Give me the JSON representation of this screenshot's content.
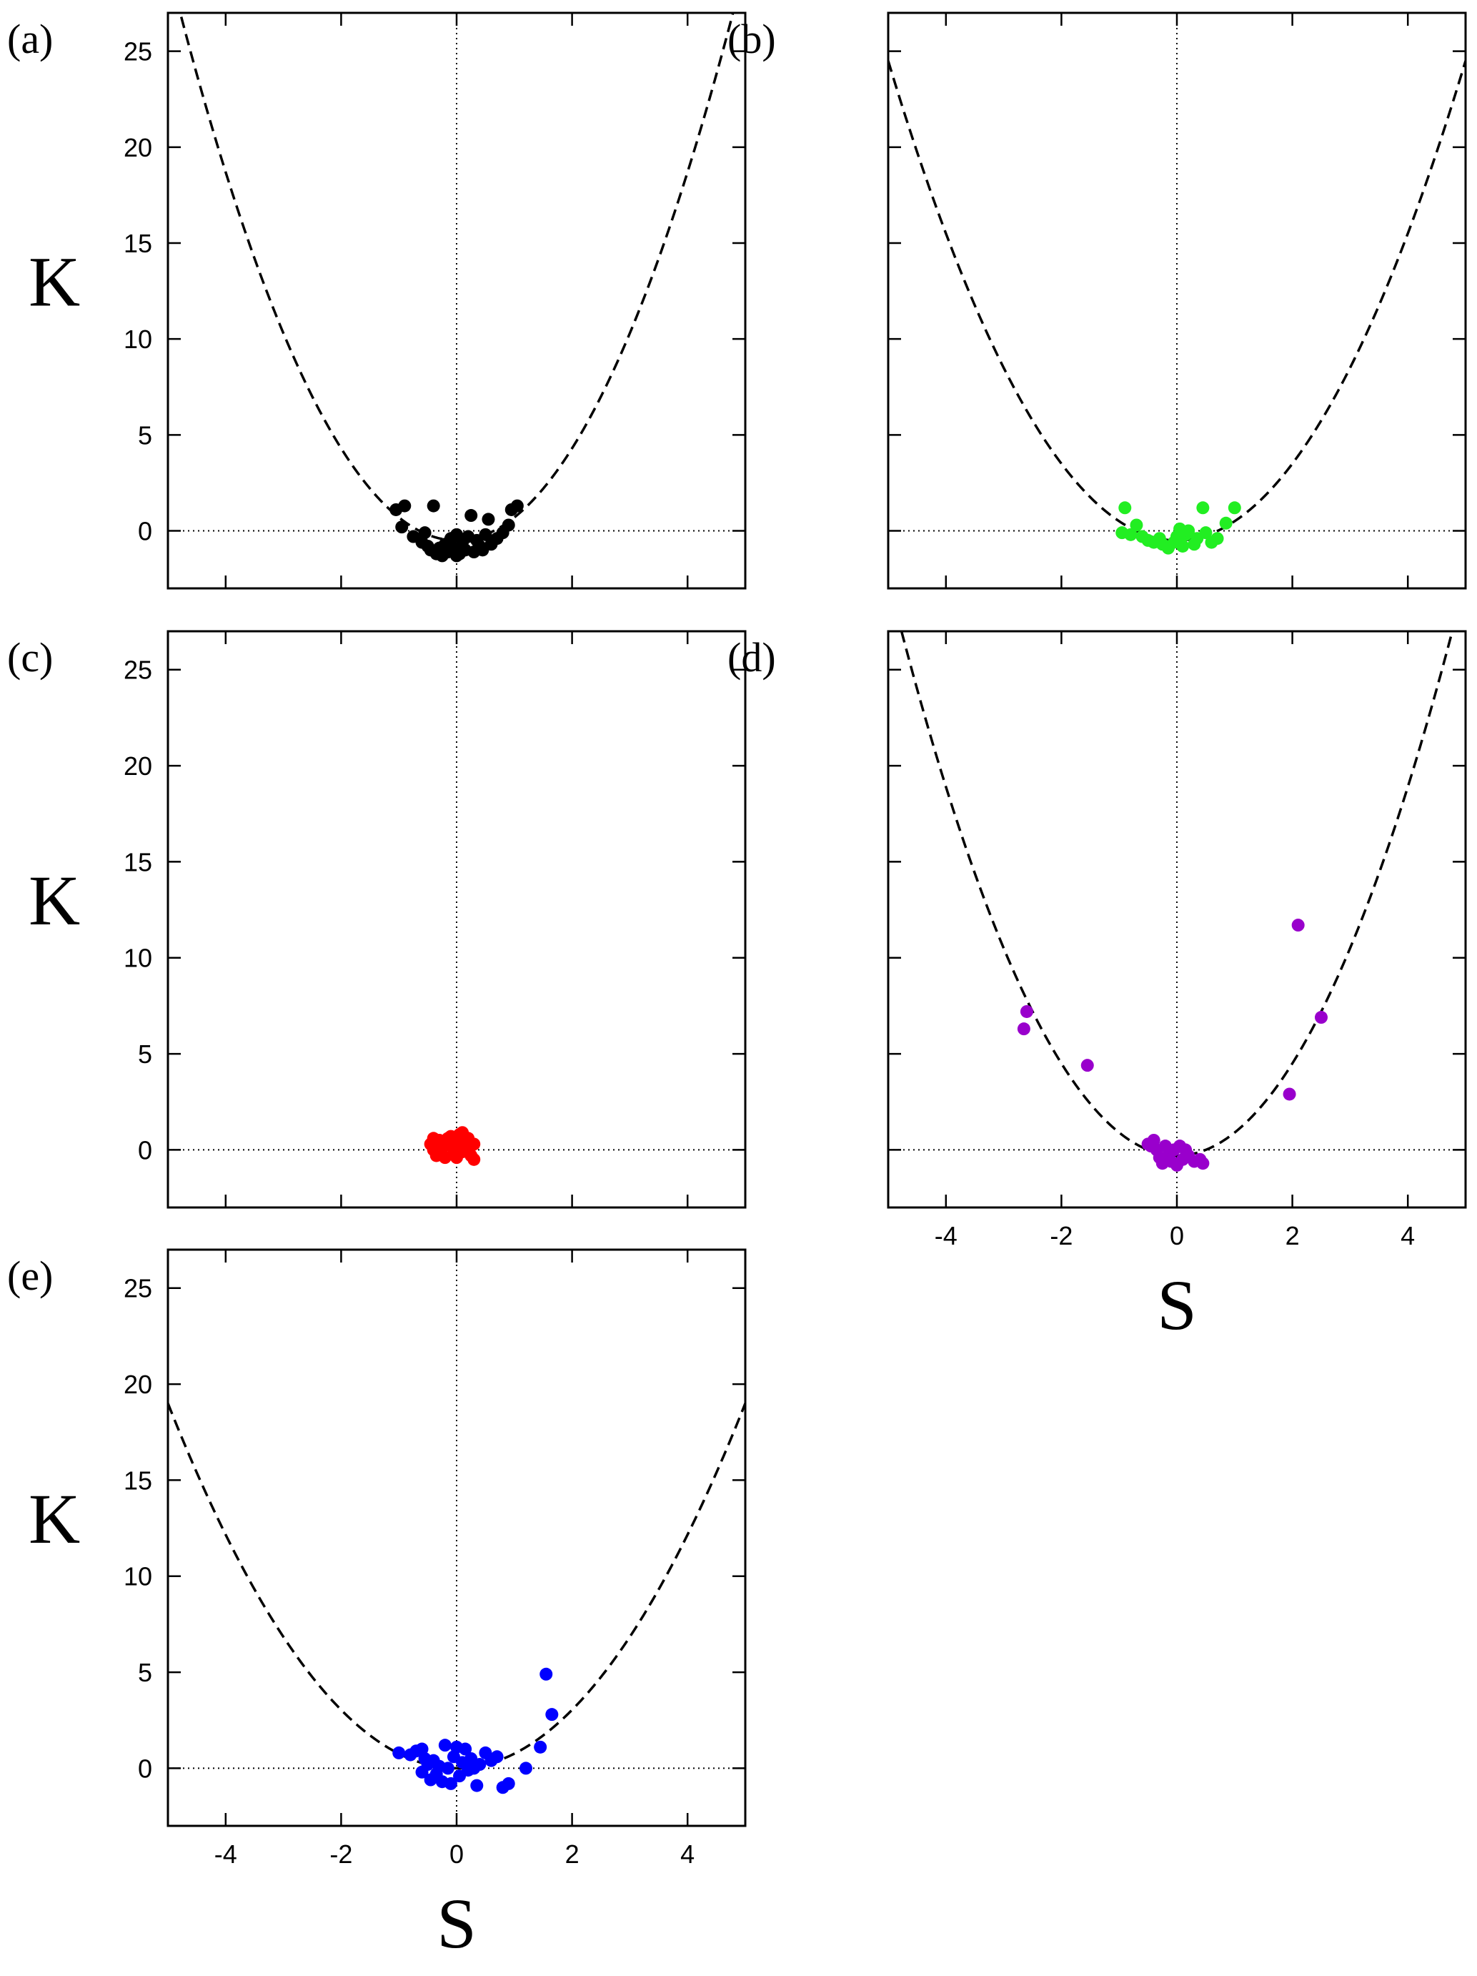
{
  "chart_data": [
    {
      "id": "a",
      "type": "scatter",
      "panel_label": "(a)",
      "xlabel": "S",
      "ylabel": "K",
      "xlim": [
        -5,
        5
      ],
      "ylim": [
        -3,
        27
      ],
      "xticks": [
        -4,
        -2,
        0,
        2,
        4
      ],
      "yticks": [
        0,
        5,
        10,
        15,
        20,
        25
      ],
      "show_xlabel": false,
      "show_xtick_labels": false,
      "color": "#000000",
      "curve": {
        "a": 1.2,
        "b": -0.5,
        "style": "dashed"
      },
      "points": [
        [
          -1.05,
          1.1
        ],
        [
          -0.9,
          1.3
        ],
        [
          -0.95,
          0.2
        ],
        [
          -0.75,
          -0.3
        ],
        [
          -0.6,
          -0.6
        ],
        [
          -0.5,
          -0.8
        ],
        [
          -0.4,
          1.3
        ],
        [
          -0.45,
          -1.0
        ],
        [
          -0.35,
          -1.2
        ],
        [
          -0.3,
          -0.9
        ],
        [
          -0.25,
          -1.3
        ],
        [
          -0.2,
          -0.7
        ],
        [
          -0.15,
          -1.1
        ],
        [
          -0.1,
          -0.4
        ],
        [
          -0.05,
          -0.9
        ],
        [
          0.0,
          -0.2
        ],
        [
          0.05,
          -1.2
        ],
        [
          0.1,
          -0.6
        ],
        [
          0.15,
          -1.0
        ],
        [
          0.2,
          -0.3
        ],
        [
          0.25,
          0.8
        ],
        [
          0.3,
          -1.1
        ],
        [
          0.35,
          -0.5
        ],
        [
          0.4,
          -0.8
        ],
        [
          0.5,
          -0.2
        ],
        [
          0.55,
          0.6
        ],
        [
          0.6,
          -0.7
        ],
        [
          0.7,
          -0.4
        ],
        [
          0.8,
          -0.1
        ],
        [
          0.9,
          0.3
        ],
        [
          0.95,
          1.1
        ],
        [
          1.05,
          1.3
        ],
        [
          -0.55,
          -0.1
        ],
        [
          0.45,
          -1.0
        ],
        [
          0.0,
          -1.3
        ]
      ]
    },
    {
      "id": "b",
      "type": "scatter",
      "panel_label": "(b)",
      "xlabel": "S",
      "ylabel": "K",
      "xlim": [
        -5,
        5
      ],
      "ylim": [
        -3,
        27
      ],
      "xticks": [
        -4,
        -2,
        0,
        2,
        4
      ],
      "yticks": [
        0,
        5,
        10,
        15,
        20,
        25
      ],
      "show_xlabel": false,
      "show_xtick_labels": false,
      "show_ylabel": false,
      "show_ytick_labels": false,
      "color": "#22ee22",
      "curve": {
        "a": 1.0,
        "b": -0.5,
        "style": "dashed"
      },
      "points": [
        [
          -0.95,
          -0.1
        ],
        [
          -0.9,
          1.2
        ],
        [
          -0.8,
          -0.2
        ],
        [
          -0.7,
          0.3
        ],
        [
          -0.6,
          -0.3
        ],
        [
          -0.5,
          -0.5
        ],
        [
          -0.4,
          -0.6
        ],
        [
          -0.3,
          -0.4
        ],
        [
          -0.25,
          -0.7
        ],
        [
          -0.15,
          -0.9
        ],
        [
          -0.05,
          -0.6
        ],
        [
          0.0,
          -0.3
        ],
        [
          0.05,
          0.1
        ],
        [
          0.1,
          -0.8
        ],
        [
          0.15,
          -0.2
        ],
        [
          0.2,
          0.0
        ],
        [
          0.3,
          -0.7
        ],
        [
          0.35,
          -0.4
        ],
        [
          0.45,
          1.2
        ],
        [
          0.5,
          -0.1
        ],
        [
          0.6,
          -0.6
        ],
        [
          0.7,
          -0.4
        ],
        [
          0.85,
          0.4
        ],
        [
          1.0,
          1.2
        ]
      ]
    },
    {
      "id": "c",
      "type": "scatter",
      "panel_label": "(c)",
      "xlabel": "S",
      "ylabel": "K",
      "xlim": [
        -5,
        5
      ],
      "ylim": [
        -3,
        27
      ],
      "xticks": [
        -4,
        -2,
        0,
        2,
        4
      ],
      "yticks": [
        0,
        5,
        10,
        15,
        20,
        25
      ],
      "show_xlabel": false,
      "show_xtick_labels": false,
      "color": "#ff0000",
      "curve": null,
      "points": [
        [
          -0.45,
          0.3
        ],
        [
          -0.4,
          0.0
        ],
        [
          -0.35,
          -0.3
        ],
        [
          -0.3,
          0.5
        ],
        [
          -0.25,
          0.1
        ],
        [
          -0.2,
          -0.4
        ],
        [
          -0.15,
          0.6
        ],
        [
          -0.1,
          0.2
        ],
        [
          -0.05,
          -0.2
        ],
        [
          0.0,
          0.4
        ],
        [
          0.05,
          0.8
        ],
        [
          0.1,
          -0.1
        ],
        [
          0.15,
          0.5
        ],
        [
          0.2,
          0.0
        ],
        [
          0.25,
          -0.3
        ],
        [
          0.3,
          0.3
        ],
        [
          -0.3,
          -0.1
        ],
        [
          0.0,
          -0.4
        ],
        [
          0.1,
          0.9
        ],
        [
          -0.2,
          0.3
        ],
        [
          0.2,
          0.6
        ],
        [
          0.3,
          -0.5
        ],
        [
          -0.4,
          0.6
        ],
        [
          0.05,
          0.1
        ],
        [
          -0.1,
          0.7
        ],
        [
          0.25,
          0.2
        ]
      ]
    },
    {
      "id": "d",
      "type": "scatter",
      "panel_label": "(d)",
      "xlabel": "S",
      "ylabel": "K",
      "xlim": [
        -5,
        5
      ],
      "ylim": [
        -3,
        27
      ],
      "xticks": [
        -4,
        -2,
        0,
        2,
        4
      ],
      "yticks": [
        0,
        5,
        10,
        15,
        20,
        25
      ],
      "show_xlabel": true,
      "show_xtick_labels": true,
      "show_ylabel": false,
      "show_ytick_labels": false,
      "color": "#9900cc",
      "curve": {
        "a": 1.2,
        "b": -0.3,
        "style": "dashed"
      },
      "points": [
        [
          -2.6,
          7.2
        ],
        [
          -2.65,
          6.3
        ],
        [
          -1.55,
          4.4
        ],
        [
          2.1,
          11.7
        ],
        [
          2.5,
          6.9
        ],
        [
          1.95,
          2.9
        ],
        [
          -0.5,
          0.3
        ],
        [
          -0.4,
          0.5
        ],
        [
          -0.35,
          0.0
        ],
        [
          -0.3,
          -0.4
        ],
        [
          -0.25,
          -0.7
        ],
        [
          -0.2,
          0.2
        ],
        [
          -0.15,
          -0.3
        ],
        [
          -0.1,
          -0.6
        ],
        [
          -0.05,
          0.0
        ],
        [
          0.0,
          -0.8
        ],
        [
          0.05,
          0.2
        ],
        [
          0.1,
          -0.5
        ],
        [
          0.15,
          0.0
        ],
        [
          0.2,
          -0.3
        ],
        [
          0.3,
          -0.6
        ],
        [
          0.4,
          -0.5
        ],
        [
          0.45,
          -0.7
        ],
        [
          -0.45,
          0.2
        ]
      ]
    },
    {
      "id": "e",
      "type": "scatter",
      "panel_label": "(e)",
      "xlabel": "S",
      "ylabel": "K",
      "xlim": [
        -5,
        5
      ],
      "ylim": [
        -3,
        27
      ],
      "xticks": [
        -4,
        -2,
        0,
        2,
        4
      ],
      "yticks": [
        0,
        5,
        10,
        15,
        20,
        25
      ],
      "show_xlabel": true,
      "show_xtick_labels": true,
      "color": "#0000ff",
      "curve": {
        "a": 0.76,
        "b": 0.0,
        "style": "dashed"
      },
      "points": [
        [
          -1.0,
          0.8
        ],
        [
          -0.8,
          0.7
        ],
        [
          -0.7,
          0.9
        ],
        [
          -0.6,
          1.0
        ],
        [
          -0.55,
          0.5
        ],
        [
          -0.5,
          0.2
        ],
        [
          -0.45,
          -0.6
        ],
        [
          -0.4,
          0.4
        ],
        [
          -0.35,
          -0.3
        ],
        [
          -0.3,
          0.1
        ],
        [
          -0.25,
          -0.7
        ],
        [
          -0.2,
          1.2
        ],
        [
          -0.15,
          0.0
        ],
        [
          -0.1,
          -0.8
        ],
        [
          -0.05,
          0.6
        ],
        [
          0.0,
          1.1
        ],
        [
          0.05,
          -0.4
        ],
        [
          0.1,
          0.3
        ],
        [
          0.15,
          1.0
        ],
        [
          0.2,
          -0.1
        ],
        [
          0.25,
          0.5
        ],
        [
          0.3,
          0.0
        ],
        [
          0.4,
          0.2
        ],
        [
          0.5,
          0.8
        ],
        [
          0.6,
          0.4
        ],
        [
          0.7,
          0.6
        ],
        [
          0.8,
          -1.0
        ],
        [
          0.9,
          -0.8
        ],
        [
          1.2,
          0.0
        ],
        [
          1.45,
          1.1
        ],
        [
          1.55,
          4.9
        ],
        [
          1.65,
          2.8
        ],
        [
          -0.6,
          -0.2
        ],
        [
          0.35,
          -0.9
        ]
      ]
    }
  ]
}
